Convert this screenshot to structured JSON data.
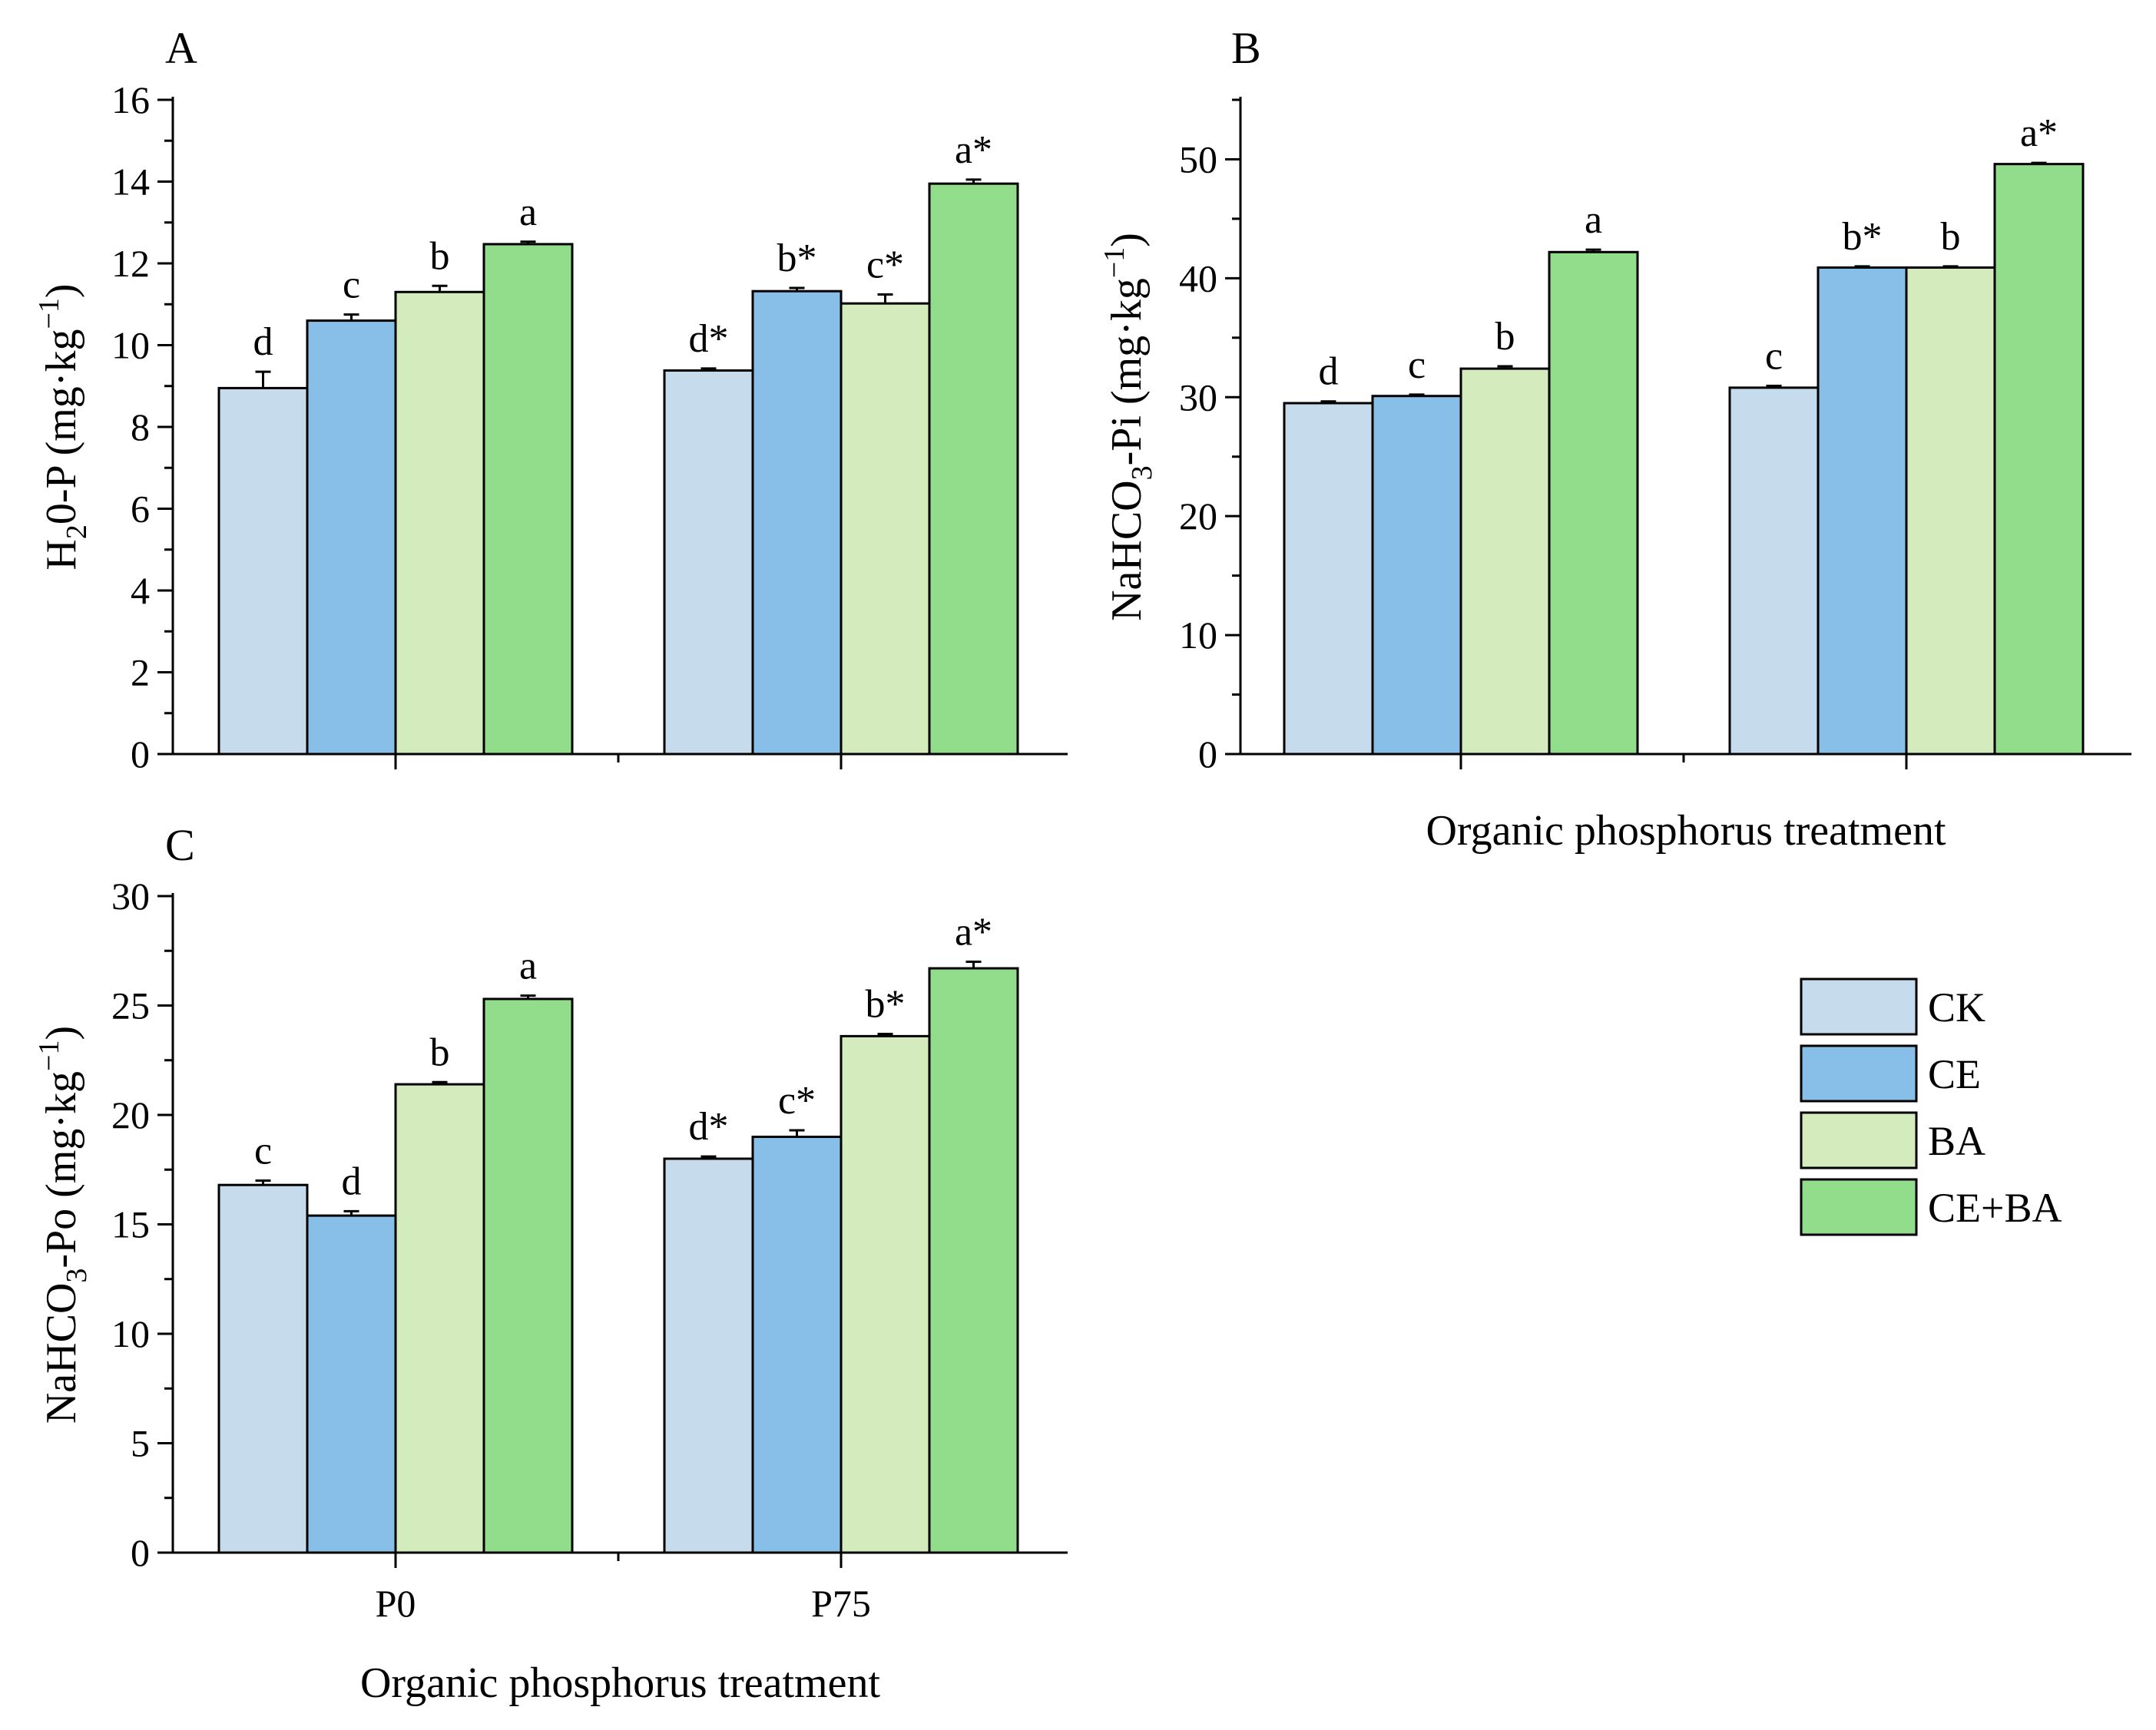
{
  "colors": {
    "CK": "#c6dcec",
    "CE": "#88bfe8",
    "BA": "#d4ecbd",
    "CE+BA": "#92dd8b"
  },
  "legend": [
    "CK",
    "CE",
    "BA",
    "CE+BA"
  ],
  "chart_data": [
    {
      "type": "bar",
      "panel": "A",
      "ylabel": "H₂0-P (mg·kg⁻¹)",
      "ylabel_parts": [
        "H",
        "2",
        "0-P (mg·kg",
        "−1",
        ")"
      ],
      "xlabel": "",
      "categories": [
        "P0",
        "P75"
      ],
      "show_x_ticklabels": false,
      "ylim": [
        0,
        16
      ],
      "yticks": [
        0,
        2,
        4,
        6,
        8,
        10,
        12,
        14,
        16
      ],
      "series": [
        {
          "name": "CK",
          "values": [
            8.95,
            9.38
          ],
          "errors": [
            0.4,
            0.05
          ],
          "labels": [
            "d",
            "d*"
          ]
        },
        {
          "name": "CE",
          "values": [
            10.6,
            11.32
          ],
          "errors": [
            0.15,
            0.08
          ],
          "labels": [
            "c",
            "b*"
          ]
        },
        {
          "name": "BA",
          "values": [
            11.3,
            11.02
          ],
          "errors": [
            0.15,
            0.22
          ],
          "labels": [
            "b",
            "c*"
          ]
        },
        {
          "name": "CE+BA",
          "values": [
            12.47,
            13.95
          ],
          "errors": [
            0.06,
            0.1
          ],
          "labels": [
            "a",
            "a*"
          ]
        }
      ]
    },
    {
      "type": "bar",
      "panel": "B",
      "ylabel": "NaHCO₃-Pi (mg·kg⁻¹)",
      "ylabel_parts": [
        "NaHCO",
        "3",
        "-Pi (mg·kg",
        "−1",
        ")"
      ],
      "xlabel": "Organic phosphorus treatment",
      "categories": [
        "P0",
        "P75"
      ],
      "show_x_ticklabels": false,
      "ylim": [
        0,
        55
      ],
      "yticks": [
        0,
        10,
        20,
        30,
        40,
        50
      ],
      "series": [
        {
          "name": "CK",
          "values": [
            29.5,
            30.8
          ],
          "errors": [
            0.15,
            0.15
          ],
          "labels": [
            "d",
            "c"
          ]
        },
        {
          "name": "CE",
          "values": [
            30.1,
            40.9
          ],
          "errors": [
            0.12,
            0.1
          ],
          "labels": [
            "c",
            "b*"
          ]
        },
        {
          "name": "BA",
          "values": [
            32.4,
            40.9
          ],
          "errors": [
            0.2,
            0.1
          ],
          "labels": [
            "b",
            "b"
          ]
        },
        {
          "name": "CE+BA",
          "values": [
            42.2,
            49.6
          ],
          "errors": [
            0.2,
            0.1
          ],
          "labels": [
            "a",
            "a*"
          ]
        }
      ]
    },
    {
      "type": "bar",
      "panel": "C",
      "ylabel": "NaHCO₃-Po (mg·kg⁻¹)",
      "ylabel_parts": [
        "NaHCO",
        "3",
        "-Po (mg·kg",
        "−1",
        ")"
      ],
      "xlabel": "Organic phosphorus treatment",
      "categories": [
        "P0",
        "P75"
      ],
      "show_x_ticklabels": true,
      "ylim": [
        0,
        30
      ],
      "yticks": [
        0,
        5,
        10,
        15,
        20,
        25,
        30
      ],
      "series": [
        {
          "name": "CK",
          "values": [
            16.8,
            18.0
          ],
          "errors": [
            0.2,
            0.1
          ],
          "labels": [
            "c",
            "d*"
          ]
        },
        {
          "name": "CE",
          "values": [
            15.4,
            19.0
          ],
          "errors": [
            0.2,
            0.3
          ],
          "labels": [
            "d",
            "c*"
          ]
        },
        {
          "name": "BA",
          "values": [
            21.4,
            23.6
          ],
          "errors": [
            0.1,
            0.1
          ],
          "labels": [
            "b",
            "b*"
          ]
        },
        {
          "name": "CE+BA",
          "values": [
            25.3,
            26.7
          ],
          "errors": [
            0.15,
            0.3
          ],
          "labels": [
            "a",
            "a*"
          ]
        }
      ]
    }
  ]
}
